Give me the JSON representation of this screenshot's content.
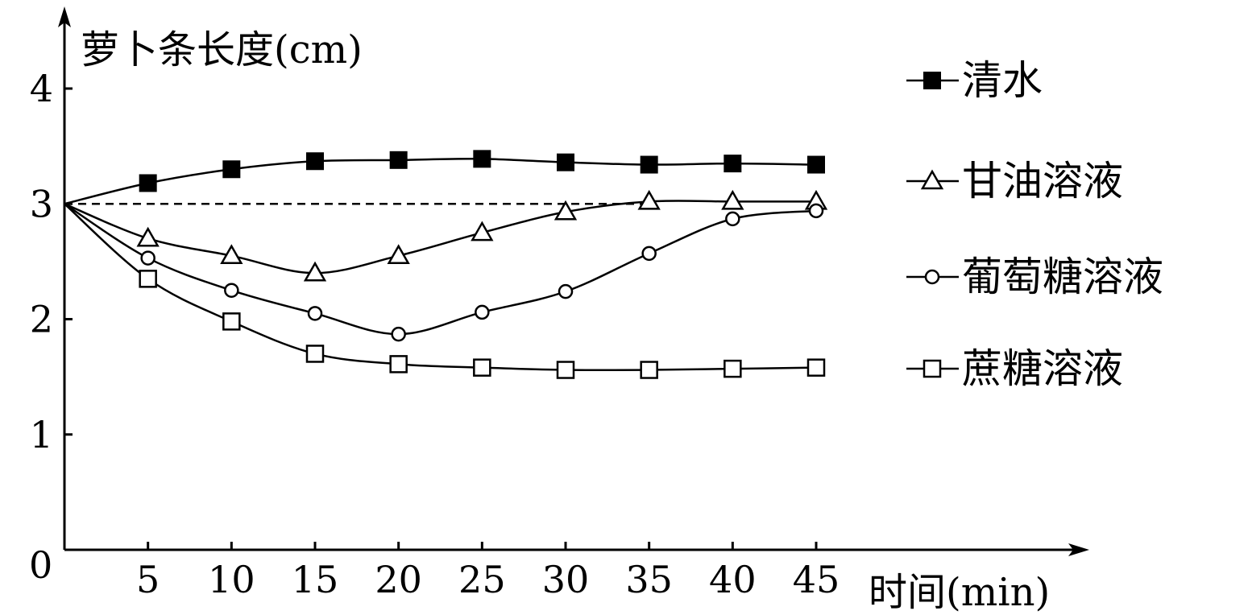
{
  "chart_data": {
    "type": "line",
    "ylabel": "萝卜条长度(cm)",
    "xlabel": "时间(min)",
    "origin_label": "0",
    "x": [
      0,
      5,
      10,
      15,
      20,
      25,
      30,
      35,
      40,
      45
    ],
    "x_ticks": [
      5,
      10,
      15,
      20,
      25,
      30,
      35,
      40,
      45
    ],
    "y_ticks": [
      1,
      2,
      3,
      4
    ],
    "xlim": [
      0,
      45
    ],
    "ylim": [
      0,
      4
    ],
    "reference_line": {
      "y": 3,
      "x_range": [
        0,
        35
      ],
      "style": "dashed"
    },
    "legend_position": "right",
    "series": [
      {
        "name": "清水",
        "marker": "filled-square",
        "values": [
          3.0,
          3.18,
          3.3,
          3.37,
          3.38,
          3.39,
          3.36,
          3.34,
          3.35,
          3.34
        ]
      },
      {
        "name": "甘油溶液",
        "marker": "open-triangle",
        "values": [
          3.0,
          2.7,
          2.55,
          2.4,
          2.55,
          2.75,
          2.93,
          3.02,
          3.02,
          3.02
        ]
      },
      {
        "name": "葡萄糖溶液",
        "marker": "open-circle",
        "values": [
          3.0,
          2.53,
          2.25,
          2.05,
          1.87,
          2.06,
          2.24,
          2.57,
          2.87,
          2.94
        ]
      },
      {
        "name": "蔗糖溶液",
        "marker": "open-square",
        "values": [
          3.0,
          2.35,
          1.98,
          1.7,
          1.61,
          1.58,
          1.56,
          1.56,
          1.57,
          1.58
        ]
      }
    ]
  }
}
